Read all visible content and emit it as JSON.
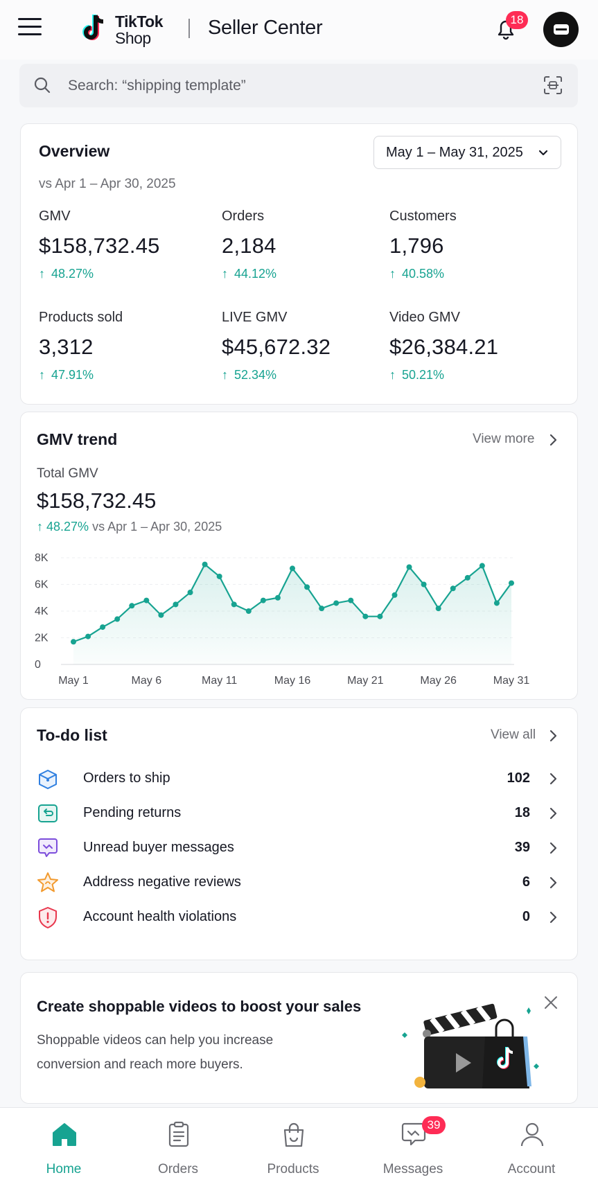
{
  "header": {
    "logo_line1": "TikTok",
    "logo_line2": "Shop",
    "title": "Seller Center",
    "notification_count": "18"
  },
  "search": {
    "placeholder": "Search: “shipping template”"
  },
  "overview": {
    "title": "Overview",
    "date_range": "May 1 – May 31, 2025",
    "compare": "vs Apr 1 – Apr 30, 2025",
    "metrics": [
      {
        "label": "GMV",
        "value": "$158,732.45",
        "change": "48.27%"
      },
      {
        "label": "Orders",
        "value": "2,184",
        "change": "44.12%"
      },
      {
        "label": "Customers",
        "value": "1,796",
        "change": "40.58%"
      },
      {
        "label": "Products sold",
        "value": "3,312",
        "change": "47.91%"
      },
      {
        "label": "LIVE GMV",
        "value": "$45,672.32",
        "change": "52.34%"
      },
      {
        "label": "Video GMV",
        "value": "$26,384.21",
        "change": "50.21%"
      }
    ]
  },
  "gmv_trend": {
    "title": "GMV trend",
    "view_more": "View more",
    "total_label": "Total GMV",
    "total_value": "$158,732.45",
    "change": "48.27%",
    "compare": "vs Apr 1 – Apr 30, 2025"
  },
  "chart_data": {
    "type": "area",
    "x": [
      1,
      2,
      3,
      4,
      5,
      6,
      7,
      8,
      9,
      10,
      11,
      12,
      13,
      14,
      15,
      16,
      17,
      18,
      19,
      20,
      21,
      22,
      23,
      24,
      25,
      26,
      27,
      28,
      29,
      30,
      31
    ],
    "series": [
      {
        "values": [
          1700,
          2100,
          2800,
          3400,
          4400,
          4800,
          3700,
          4500,
          5400,
          7500,
          6600,
          4500,
          4000,
          4800,
          5000,
          7200,
          5800,
          4200,
          4600,
          4800,
          3600,
          3600,
          5200,
          7300,
          6000,
          4200,
          5700,
          6500,
          7400,
          4600,
          6100
        ]
      }
    ],
    "x_tick_labels": [
      "May 1",
      "May 6",
      "May 11",
      "May 16",
      "May 21",
      "May 26",
      "May 31"
    ],
    "y_tick_labels": [
      "0",
      "2K",
      "4K",
      "6K",
      "8K"
    ],
    "ylim": [
      0,
      8000
    ],
    "color": "#17a391"
  },
  "todo": {
    "title": "To-do list",
    "view_all": "View all",
    "items": [
      {
        "label": "Orders to ship",
        "count": "102",
        "icon": "box-icon",
        "color": "#2f7fe0"
      },
      {
        "label": "Pending returns",
        "count": "18",
        "icon": "return-icon",
        "color": "#17a391"
      },
      {
        "label": "Unread buyer messages",
        "count": "39",
        "icon": "message-icon",
        "color": "#7c4ddb"
      },
      {
        "label": "Address negative reviews",
        "count": "6",
        "icon": "star-icon",
        "color": "#f29a2e"
      },
      {
        "label": "Account health violations",
        "count": "0",
        "icon": "shield-icon",
        "color": "#e8364c"
      }
    ]
  },
  "promo": {
    "title": "Create shoppable videos to boost your sales",
    "text": "Shoppable videos can help you increase conversion and reach more buyers."
  },
  "bottom_nav": {
    "items": [
      {
        "label": "Home",
        "icon": "home-icon",
        "active": true
      },
      {
        "label": "Orders",
        "icon": "clipboard-icon"
      },
      {
        "label": "Products",
        "icon": "bag-icon"
      },
      {
        "label": "Messages",
        "icon": "chat-icon",
        "badge": "39"
      },
      {
        "label": "Account",
        "icon": "person-icon"
      }
    ]
  }
}
